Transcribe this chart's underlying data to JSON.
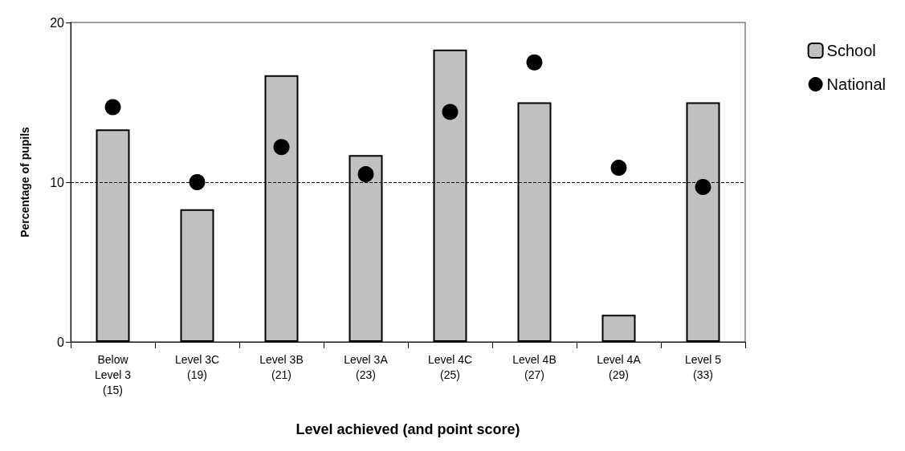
{
  "chart_data": {
    "type": "bar",
    "xlabel": "Level achieved (and point score)",
    "ylabel": "Percentage of pupils",
    "categories": [
      "Below\nLevel 3\n(15)",
      "Level 3C\n(19)",
      "Level 3B\n(21)",
      "Level 3A\n(23)",
      "Level 4C\n(25)",
      "Level 4B\n(27)",
      "Level 4A\n(29)",
      "Level 5\n(33)"
    ],
    "series": [
      {
        "name": "School",
        "color": "#c0c0c0",
        "values": [
          13.3,
          8.3,
          16.7,
          11.7,
          18.3,
          15.0,
          1.7,
          15.0
        ]
      },
      {
        "name": "National",
        "type": "scatter",
        "color": "#000000",
        "marker": "circle",
        "values": [
          14.7,
          10.0,
          12.2,
          10.5,
          14.4,
          17.5,
          10.9,
          9.7
        ]
      }
    ],
    "ylim": [
      0,
      20
    ],
    "yticks": [
      0,
      10,
      20
    ],
    "grid": false,
    "legend": "right",
    "ref_lines": [
      {
        "axis": "y",
        "value": 10,
        "line_style": "dashed",
        "color": "#000000"
      }
    ]
  }
}
